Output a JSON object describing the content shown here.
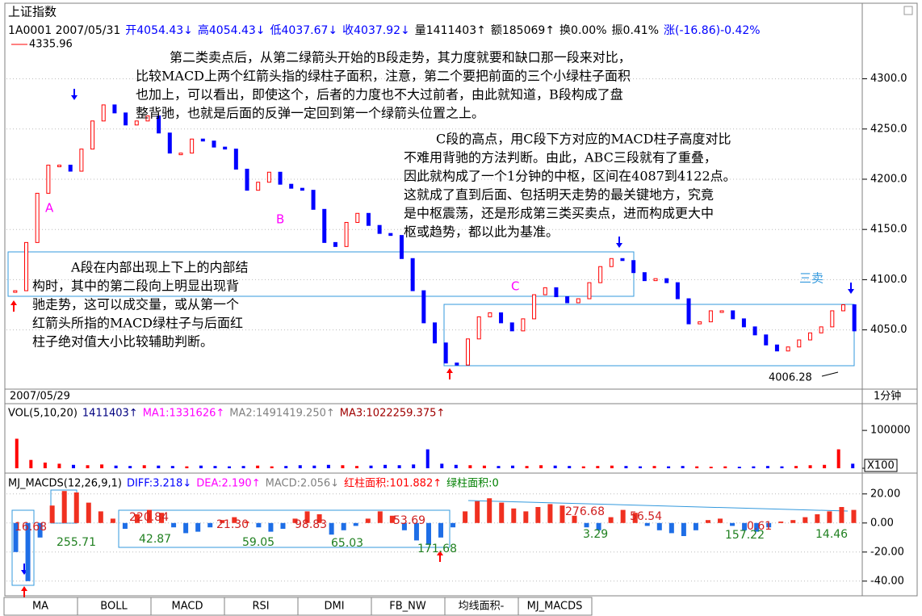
{
  "header": {
    "title": "上证指数",
    "items": [
      {
        "text": "1A0001 2007/05/31",
        "color": "#000000"
      },
      {
        "text": "开4054.43↓",
        "color": "#0000ff"
      },
      {
        "text": "高4054.43↓",
        "color": "#0000ff"
      },
      {
        "text": "低4037.67↓",
        "color": "#0000ff"
      },
      {
        "text": "收4037.92↓",
        "color": "#0000ff"
      },
      {
        "text": "量1411403↑",
        "color": "#000000"
      },
      {
        "text": "额185069↑",
        "color": "#000000"
      },
      {
        "text": "换0.00%",
        "color": "#000000"
      },
      {
        "text": "振0.41%",
        "color": "#000000"
      },
      {
        "text": "涨(-16.86)-0.42%",
        "color": "#0000ff"
      }
    ]
  },
  "chart_data": [
    {
      "type": "line",
      "values": [
        4089,
        4137,
        4186,
        4214,
        4214,
        4208,
        4230,
        4258,
        4274,
        4266,
        4254,
        4258,
        4263,
        4246,
        4226,
        4226,
        4240,
        4238,
        4232,
        4230,
        4210,
        4189,
        4197,
        4207,
        4195,
        4191,
        4189,
        4170,
        4137,
        4133,
        4157,
        4166,
        4154,
        4146,
        4144,
        4121,
        4089,
        4057,
        4037,
        4017,
        4015,
        4041,
        4063,
        4067,
        4057,
        4049,
        4061,
        4085,
        4092,
        4083,
        4077,
        4081,
        4097,
        4113,
        4121,
        4119,
        4107,
        4099,
        4101,
        4097,
        4081,
        4056,
        4058,
        4069,
        4069,
        4061,
        4053,
        4045,
        4035,
        4029,
        4033,
        4040,
        4047,
        4053,
        4069,
        4075,
        4049
      ],
      "ylim": [
        3991,
        4372
      ],
      "yticks": [
        {
          "value": 4050,
          "label": "4050.0"
        },
        {
          "value": 4100,
          "label": "4100.0"
        },
        {
          "value": 4150,
          "label": "4150.0"
        },
        {
          "value": 4200,
          "label": "4200.0"
        },
        {
          "value": 4250,
          "label": "4250.0"
        },
        {
          "value": 4300,
          "label": "4300.0"
        }
      ],
      "up_color": "#ff0000",
      "down_color": "#0000ff",
      "grid": true,
      "high_label": "4335.96",
      "low_label": "4006.28",
      "date_label": "2007/05/29",
      "period_label": "1分钟",
      "wave_labels": [
        "A",
        "B",
        "C",
        "三卖"
      ],
      "notes": [
        [
          "第二类卖点后，从第二绿箭头开始的B段走势，其力度就要和缺口那一段来对比，",
          "比较MACD上两个红箭头指的绿柱子面积，注意，第二个要把前面的三个小绿柱子面积",
          "也加上，可以看出，即使这个，后者的力度也不大过前者，由此就知道，B段构成了盘",
          "整背驰，也就是后面的反弹一定回到第一个绿箭头位置之上。"
        ],
        [
          "C段的高点，用C段下方对应的MACD柱子高度对比",
          "不难用背驰的方法判断。由此，ABC三段就有了重叠，",
          "因此就构成了一个1分钟的中枢，区间在4087到4122点。",
          "这就成了直到后面、包括明天走势的最关键地方，究竟",
          "是中枢震荡，还是形成第三类买卖点，进而构成更大中",
          "枢或趋势，都以此为基准。"
        ],
        [
          "A段在内部出现上下上的内部结",
          "构时，其中的第二段向上明显出现背",
          "驰走势，这可以成交量，或从第一个",
          "红箭头所指的MACD绿柱子与后面红",
          "柱子绝对值大小比较辅助判断。"
        ]
      ]
    },
    {
      "type": "bar",
      "header": [
        "VOL(5,10,20)",
        "1411403↑",
        "MA1:1331626↑",
        "MA2:1491419.250↑",
        "MA3:1022259.375↑"
      ],
      "header_colors": [
        "#000000",
        "#000080",
        "#ff00ff",
        "#808080",
        "#a00000"
      ],
      "values": [
        78000,
        22000,
        15000,
        12000,
        9000,
        8000,
        10000,
        7000,
        6000,
        8000,
        7000,
        6000,
        5000,
        7000,
        6000,
        5000,
        6000,
        7000,
        5000,
        6000,
        8000,
        7000,
        9000,
        8000,
        6000,
        7000,
        9000,
        8000,
        10000,
        50000,
        12000,
        9000,
        8000,
        7000,
        6000,
        7000,
        6000,
        8000,
        7000,
        6000,
        5000,
        6000,
        7000,
        6000,
        5000,
        6000,
        5000,
        6000,
        5000,
        4000,
        5000,
        4000,
        5000,
        6000,
        5000,
        6000,
        8000,
        9000,
        50000,
        12000
      ],
      "ylim": [
        0,
        160000
      ],
      "yticks": [
        0,
        100000
      ],
      "unit_label": "X100",
      "up_color": "#ff0000",
      "down_color": "#0000ff"
    },
    {
      "type": "bar",
      "header": [
        "MJ_MACDS(12,26,9,1)",
        "DIFF:3.218↓",
        "DEA:2.190↑",
        "MACD:2.056↓",
        "红柱面积:101.882↑",
        "绿柱面积:0"
      ],
      "header_colors": [
        "#000000",
        "#0000ff",
        "#ff00ff",
        "#808080",
        "#ff0000",
        "#008000"
      ],
      "values": [
        -20,
        -40,
        -10,
        12,
        22,
        21,
        14,
        8,
        3,
        -4,
        6,
        9,
        7,
        -3,
        -7,
        -6,
        -3,
        2,
        4,
        1,
        -3,
        -6,
        -4,
        3,
        8,
        6,
        -8,
        -5,
        -2,
        3,
        8,
        5,
        -5,
        -12,
        -15,
        -10,
        -3,
        8,
        15,
        17,
        14,
        10,
        8,
        11,
        13,
        12,
        5,
        -3,
        -5,
        4,
        9,
        7,
        -2,
        -5,
        -7,
        -9,
        -5,
        2,
        3,
        -2,
        -5,
        -6,
        -3,
        1,
        2,
        4,
        6,
        8,
        11,
        9
      ],
      "ylim": [
        -49,
        31
      ],
      "yticks": [
        {
          "value": -40,
          "label": "-40.00"
        },
        {
          "value": -20,
          "label": "-20.00"
        },
        {
          "value": 0,
          "label": "0.00"
        },
        {
          "value": 20,
          "label": "20.00"
        }
      ],
      "positive_color": "#f03020",
      "negative_color": "#1e6ee6",
      "grid": true,
      "area_labels": [
        "16.68",
        "255.71",
        "220.84",
        "42.87",
        "21.30",
        "59.05",
        "98.83",
        "65.03",
        "53.69",
        "171.68",
        "276.68",
        "3.29",
        "56.54",
        "157.22",
        "0.61",
        "14.46"
      ]
    }
  ],
  "tabs": [
    "MA",
    "BOLL",
    "MACD",
    "RSI",
    "DMI",
    "FB_NW",
    "均线面积-",
    "MJ_MACDS"
  ]
}
